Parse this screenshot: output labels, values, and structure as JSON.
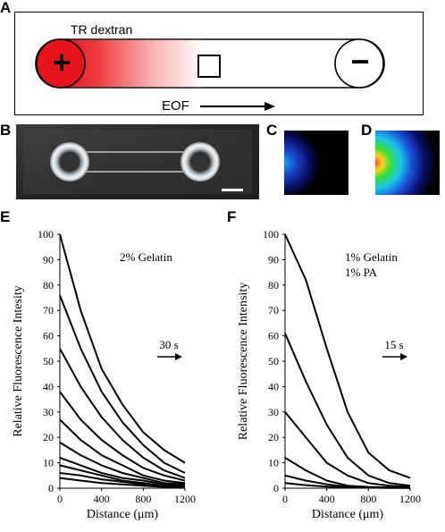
{
  "panels": {
    "a": {
      "letter": "A",
      "dye_label": "TR dextran",
      "positive_symbol": "+",
      "negative_symbol": "−",
      "flow_label": "EOF"
    },
    "b": {
      "letter": "B"
    },
    "c": {
      "letter": "C"
    },
    "d": {
      "letter": "D"
    },
    "e": {
      "letter": "E"
    },
    "f": {
      "letter": "F"
    }
  },
  "colors": {
    "red": "#e8141c",
    "ink": "#000000"
  },
  "chart_data": [
    {
      "type": "line",
      "panel": "E",
      "annotation": "2% Gelatin",
      "time_label": "30 s",
      "xlabel": "Distance (μm)",
      "ylabel": "Relative Fluorescence Intesity",
      "xlim": [
        0,
        1200
      ],
      "ylim": [
        0,
        100
      ],
      "xticks": [
        0,
        400,
        800,
        1200
      ],
      "yticks": [
        0,
        10,
        20,
        30,
        40,
        50,
        60,
        70,
        80,
        90,
        100
      ],
      "series": [
        {
          "x": [
            0,
            200,
            400,
            600,
            800,
            1000,
            1200
          ],
          "y": [
            100,
            70,
            47,
            33,
            22,
            15,
            10
          ]
        },
        {
          "x": [
            0,
            200,
            400,
            600,
            800,
            1000,
            1200
          ],
          "y": [
            76,
            55,
            38,
            26,
            17,
            10,
            6
          ]
        },
        {
          "x": [
            0,
            200,
            400,
            600,
            800,
            1000,
            1200
          ],
          "y": [
            55,
            40,
            28,
            19,
            12,
            7,
            4
          ]
        },
        {
          "x": [
            0,
            200,
            400,
            600,
            800,
            1000,
            1200
          ],
          "y": [
            38,
            27,
            19,
            13,
            8,
            5,
            3
          ]
        },
        {
          "x": [
            0,
            200,
            400,
            600,
            800,
            1000,
            1200
          ],
          "y": [
            27,
            19,
            13,
            9,
            5,
            3,
            2
          ]
        },
        {
          "x": [
            0,
            200,
            400,
            600,
            800,
            1000,
            1200
          ],
          "y": [
            18,
            13,
            9,
            6,
            4,
            2,
            1.5
          ]
        },
        {
          "x": [
            0,
            200,
            400,
            600,
            800,
            1000,
            1200
          ],
          "y": [
            12,
            9,
            6,
            4,
            3,
            1.5,
            1
          ]
        },
        {
          "x": [
            0,
            200,
            400,
            600,
            800,
            1000,
            1200
          ],
          "y": [
            9,
            7,
            5,
            3,
            2,
            1,
            1
          ]
        },
        {
          "x": [
            0,
            200,
            400,
            600,
            800,
            1000,
            1200
          ],
          "y": [
            6,
            5,
            3.5,
            2.5,
            1.5,
            1,
            0.5
          ]
        },
        {
          "x": [
            0,
            200,
            400,
            600,
            800,
            1000,
            1200
          ],
          "y": [
            4,
            3,
            2,
            1.5,
            1,
            0.5,
            0.5
          ]
        }
      ]
    },
    {
      "type": "line",
      "panel": "F",
      "annotation": [
        "1% Gelatin",
        "1% PA"
      ],
      "time_label": "15 s",
      "xlabel": "Distance (μm)",
      "ylabel": "Relative Fluorescence Intensity",
      "xlim": [
        0,
        1200
      ],
      "ylim": [
        0,
        100
      ],
      "xticks": [
        0,
        400,
        800,
        1200
      ],
      "yticks": [
        0,
        10,
        20,
        30,
        40,
        50,
        60,
        70,
        80,
        90,
        100
      ],
      "series": [
        {
          "x": [
            0,
            200,
            400,
            600,
            800,
            1000,
            1200
          ],
          "y": [
            100,
            82,
            55,
            30,
            14,
            7,
            4
          ]
        },
        {
          "x": [
            0,
            200,
            400,
            600,
            800,
            1000,
            1200
          ],
          "y": [
            61,
            42,
            25,
            12,
            5,
            2,
            1
          ]
        },
        {
          "x": [
            0,
            200,
            400,
            600,
            800,
            1000,
            1200
          ],
          "y": [
            30,
            20,
            10,
            5,
            2,
            1,
            0.5
          ]
        },
        {
          "x": [
            0,
            200,
            400,
            600,
            800,
            1000,
            1200
          ],
          "y": [
            12,
            7,
            3,
            1,
            0.5,
            0.3,
            0.2
          ]
        },
        {
          "x": [
            0,
            200,
            400,
            600,
            800,
            1000,
            1200
          ],
          "y": [
            5,
            3,
            1.5,
            0.6,
            0.3,
            0.2,
            0.1
          ]
        },
        {
          "x": [
            0,
            200,
            400,
            600,
            800,
            1000,
            1200
          ],
          "y": [
            2,
            1.2,
            0.6,
            0.3,
            0.2,
            0.1,
            0.1
          ]
        }
      ]
    }
  ]
}
